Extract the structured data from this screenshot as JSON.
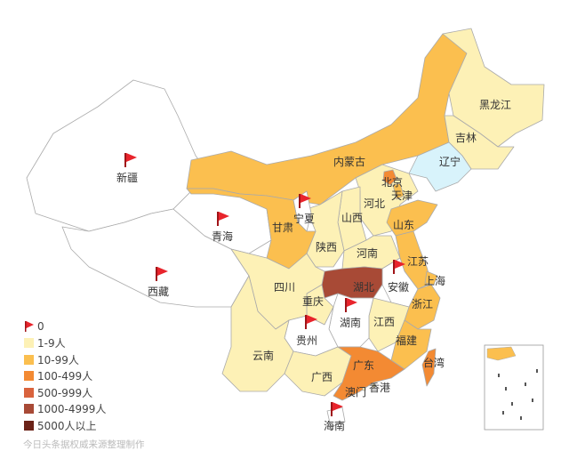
{
  "colors": {
    "zero": "#ffffff",
    "1-9": "#fdf1b6",
    "10-99": "#fbbf4f",
    "100-499": "#f38a33",
    "500-999": "#d9633d",
    "1000-4999": "#a84a36",
    "5000+": "#6b2218",
    "no-data": "#d8f3fb",
    "flag": "#e8242c"
  },
  "legend": [
    {
      "label": "0",
      "key": "zero",
      "icon": "red-flag-icon"
    },
    {
      "label": "1-9人",
      "key": "1-9"
    },
    {
      "label": "10-99人",
      "key": "10-99"
    },
    {
      "label": "100-499人",
      "key": "100-499"
    },
    {
      "label": "500-999人",
      "key": "500-999"
    },
    {
      "label": "1000-4999人",
      "key": "1000-4999"
    },
    {
      "label": "5000人以上",
      "key": "5000+"
    }
  ],
  "provinces": [
    {
      "name": "新疆",
      "category": "zero"
    },
    {
      "name": "西藏",
      "category": "zero"
    },
    {
      "name": "青海",
      "category": "zero"
    },
    {
      "name": "内蒙古",
      "category": "10-99"
    },
    {
      "name": "黑龙江",
      "category": "1-9"
    },
    {
      "name": "吉林",
      "category": "1-9"
    },
    {
      "name": "辽宁",
      "category": "no-data"
    },
    {
      "name": "河北",
      "category": "1-9"
    },
    {
      "name": "北京",
      "category": "100-499"
    },
    {
      "name": "天津",
      "category": "10-99"
    },
    {
      "name": "山西",
      "category": "1-9"
    },
    {
      "name": "陕西",
      "category": "1-9"
    },
    {
      "name": "宁夏",
      "category": "zero"
    },
    {
      "name": "甘肃",
      "category": "10-99"
    },
    {
      "name": "河南",
      "category": "1-9"
    },
    {
      "name": "山东",
      "category": "10-99"
    },
    {
      "name": "江苏",
      "category": "10-99"
    },
    {
      "name": "上海",
      "category": "10-99"
    },
    {
      "name": "安徽",
      "category": "zero"
    },
    {
      "name": "湖北",
      "category": "1000-4999"
    },
    {
      "name": "浙江",
      "category": "10-99"
    },
    {
      "name": "江西",
      "category": "1-9"
    },
    {
      "name": "福建",
      "category": "10-99"
    },
    {
      "name": "湖南",
      "category": "zero"
    },
    {
      "name": "重庆",
      "category": "1-9"
    },
    {
      "name": "四川",
      "category": "1-9"
    },
    {
      "name": "贵州",
      "category": "zero"
    },
    {
      "name": "云南",
      "category": "1-9"
    },
    {
      "name": "广西",
      "category": "1-9"
    },
    {
      "name": "广东",
      "category": "100-499"
    },
    {
      "name": "海南",
      "category": "zero"
    },
    {
      "name": "台湾",
      "category": "100-499"
    },
    {
      "name": "香港",
      "category": "1-9"
    },
    {
      "name": "澳门",
      "category": "1-9"
    }
  ],
  "footer": "今日头条据权威来源整理制作"
}
